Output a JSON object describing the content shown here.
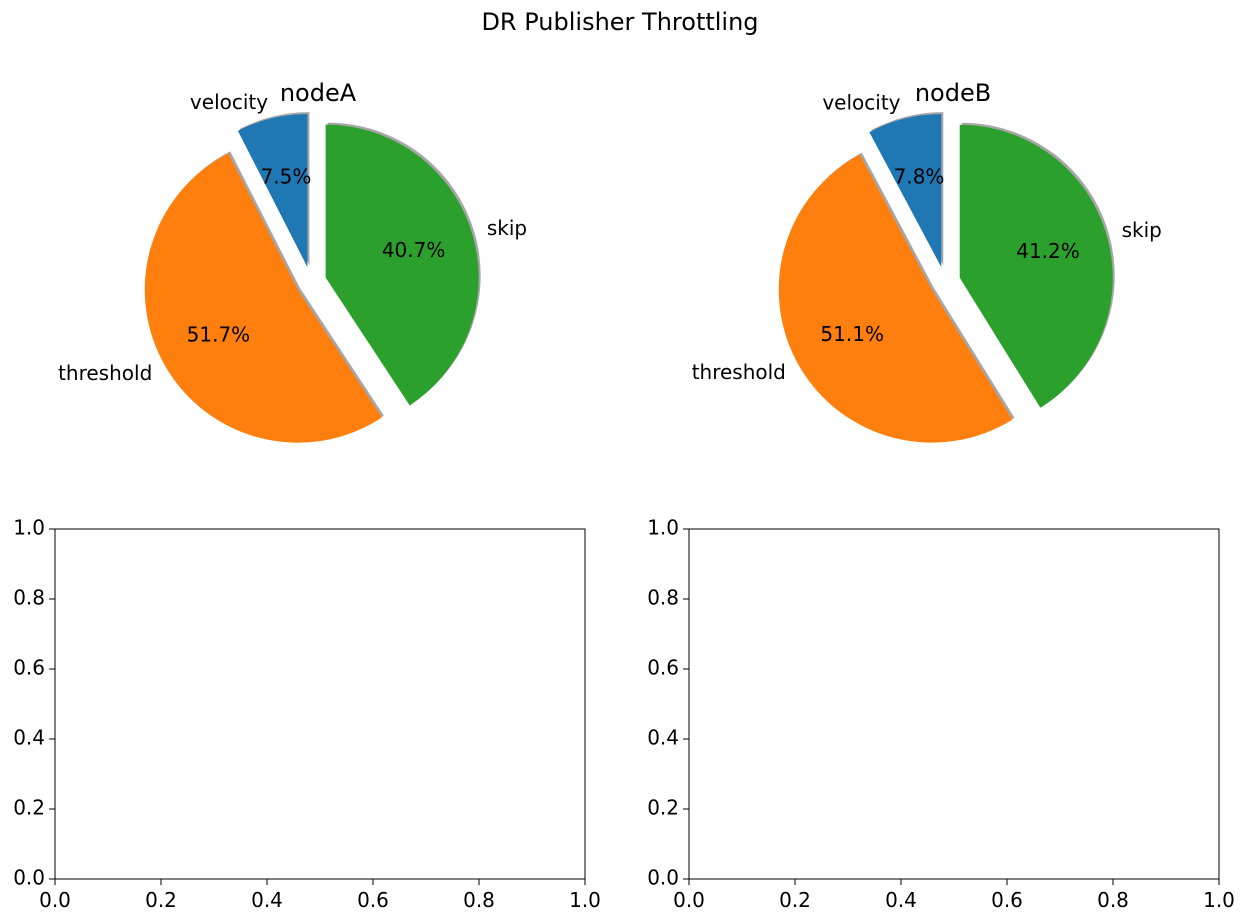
{
  "figure": {
    "title": "DR Publisher Throttling"
  },
  "chart_data": [
    {
      "type": "pie",
      "title": "nodeA",
      "labels": [
        "velocity",
        "threshold",
        "skip"
      ],
      "values": [
        7.5,
        51.7,
        40.7
      ],
      "value_labels": [
        "7.5%",
        "51.7%",
        "40.7%"
      ],
      "colors": [
        "#1f77b4",
        "#ff7f0e",
        "#2ca02c"
      ],
      "exploded": true,
      "shadow": true
    },
    {
      "type": "pie",
      "title": "nodeB",
      "labels": [
        "velocity",
        "threshold",
        "skip"
      ],
      "values": [
        7.8,
        51.1,
        41.2
      ],
      "value_labels": [
        "7.8%",
        "51.1%",
        "41.2%"
      ],
      "colors": [
        "#1f77b4",
        "#ff7f0e",
        "#2ca02c"
      ],
      "exploded": true,
      "shadow": true
    },
    {
      "type": "empty_axes",
      "xlim": [
        0,
        1
      ],
      "ylim": [
        0,
        1
      ],
      "xticks": [
        "0.0",
        "0.2",
        "0.4",
        "0.6",
        "0.8",
        "1.0"
      ],
      "yticks": [
        "0.0",
        "0.2",
        "0.4",
        "0.6",
        "0.8",
        "1.0"
      ]
    },
    {
      "type": "empty_axes",
      "xlim": [
        0,
        1
      ],
      "ylim": [
        0,
        1
      ],
      "xticks": [
        "0.0",
        "0.2",
        "0.4",
        "0.6",
        "0.8",
        "1.0"
      ],
      "yticks": [
        "0.0",
        "0.2",
        "0.4",
        "0.6",
        "0.8",
        "1.0"
      ]
    }
  ]
}
